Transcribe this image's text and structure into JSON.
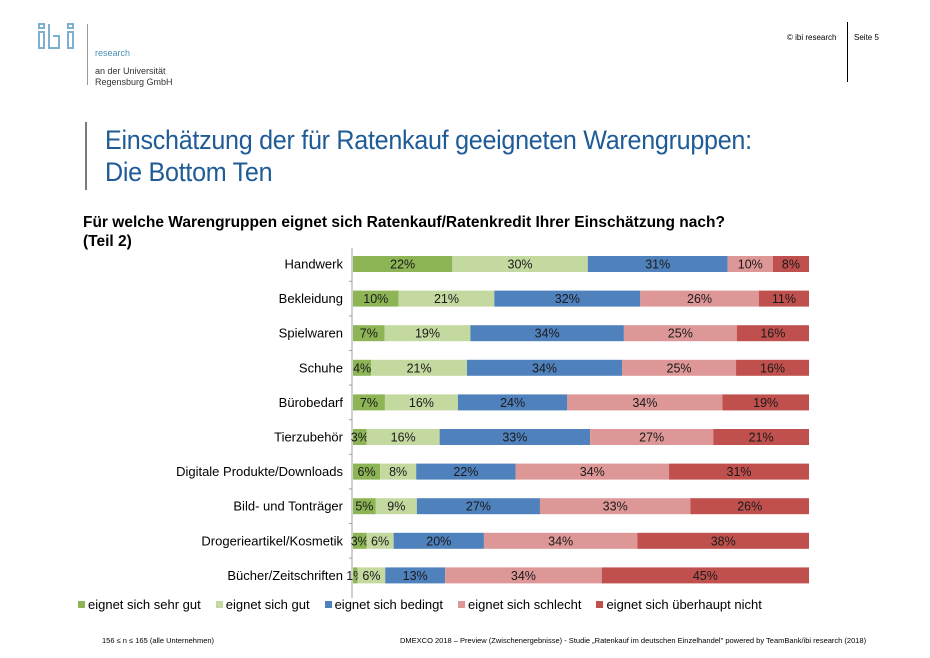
{
  "header": {
    "logo_text": "ibi",
    "logo_sub": "research",
    "logo_uni_line1": "an der Universität",
    "logo_uni_line2": "Regensburg GmbH",
    "copyright": "© ibi research",
    "page": "Seite 5"
  },
  "title": {
    "line1": "Einschätzung der für Ratenkauf geeigneten Warengruppen:",
    "line2": "Die Bottom Ten"
  },
  "question": {
    "line1": "Für welche Warengruppen eignet sich Ratenkauf/Ratenkredit Ihrer Einschätzung nach?",
    "line2": "(Teil 2)"
  },
  "footer": {
    "sample": "156 ≤ n ≤ 165 (alle Unternehmen)",
    "source": "DMEXCO 2018 – Preview (Zwischenergebnisse) - Studie „Ratenkauf im deutschen Einzelhandel\" powered by TeamBank/ibi research (2018)"
  },
  "chart_data": {
    "type": "bar",
    "orientation": "horizontal",
    "stacked": "100%",
    "title": "Für welche Warengruppen eignet sich Ratenkauf/Ratenkredit Ihrer Einschätzung nach? (Teil 2)",
    "xlabel": "",
    "ylabel": "",
    "legend_position": "bottom",
    "grid": false,
    "categories": [
      "Handwerk",
      "Bekleidung",
      "Spielwaren",
      "Schuhe",
      "Bürobedarf",
      "Tierzubehör",
      "Digitale Produkte/Downloads",
      "Bild- und Tonträger",
      "Drogerieartikel/Kosmetik",
      "Bücher/Zeitschriften"
    ],
    "series": [
      {
        "name": "eignet sich sehr gut",
        "color": "#8db556",
        "values": [
          22,
          10,
          7,
          4,
          7,
          3,
          6,
          5,
          3,
          1
        ]
      },
      {
        "name": "eignet sich gut",
        "color": "#c4d9a0",
        "values": [
          30,
          21,
          19,
          21,
          16,
          16,
          8,
          9,
          6,
          6
        ]
      },
      {
        "name": "eignet sich bedingt",
        "color": "#4f81bd",
        "values": [
          31,
          32,
          34,
          34,
          24,
          33,
          22,
          27,
          20,
          13
        ]
      },
      {
        "name": "eignet sich schlecht",
        "color": "#de9797",
        "values": [
          10,
          26,
          25,
          25,
          34,
          27,
          34,
          33,
          34,
          34
        ]
      },
      {
        "name": "eignet sich überhaupt nicht",
        "color": "#c0504d",
        "values": [
          8,
          11,
          16,
          16,
          19,
          21,
          31,
          26,
          38,
          45
        ]
      }
    ]
  }
}
